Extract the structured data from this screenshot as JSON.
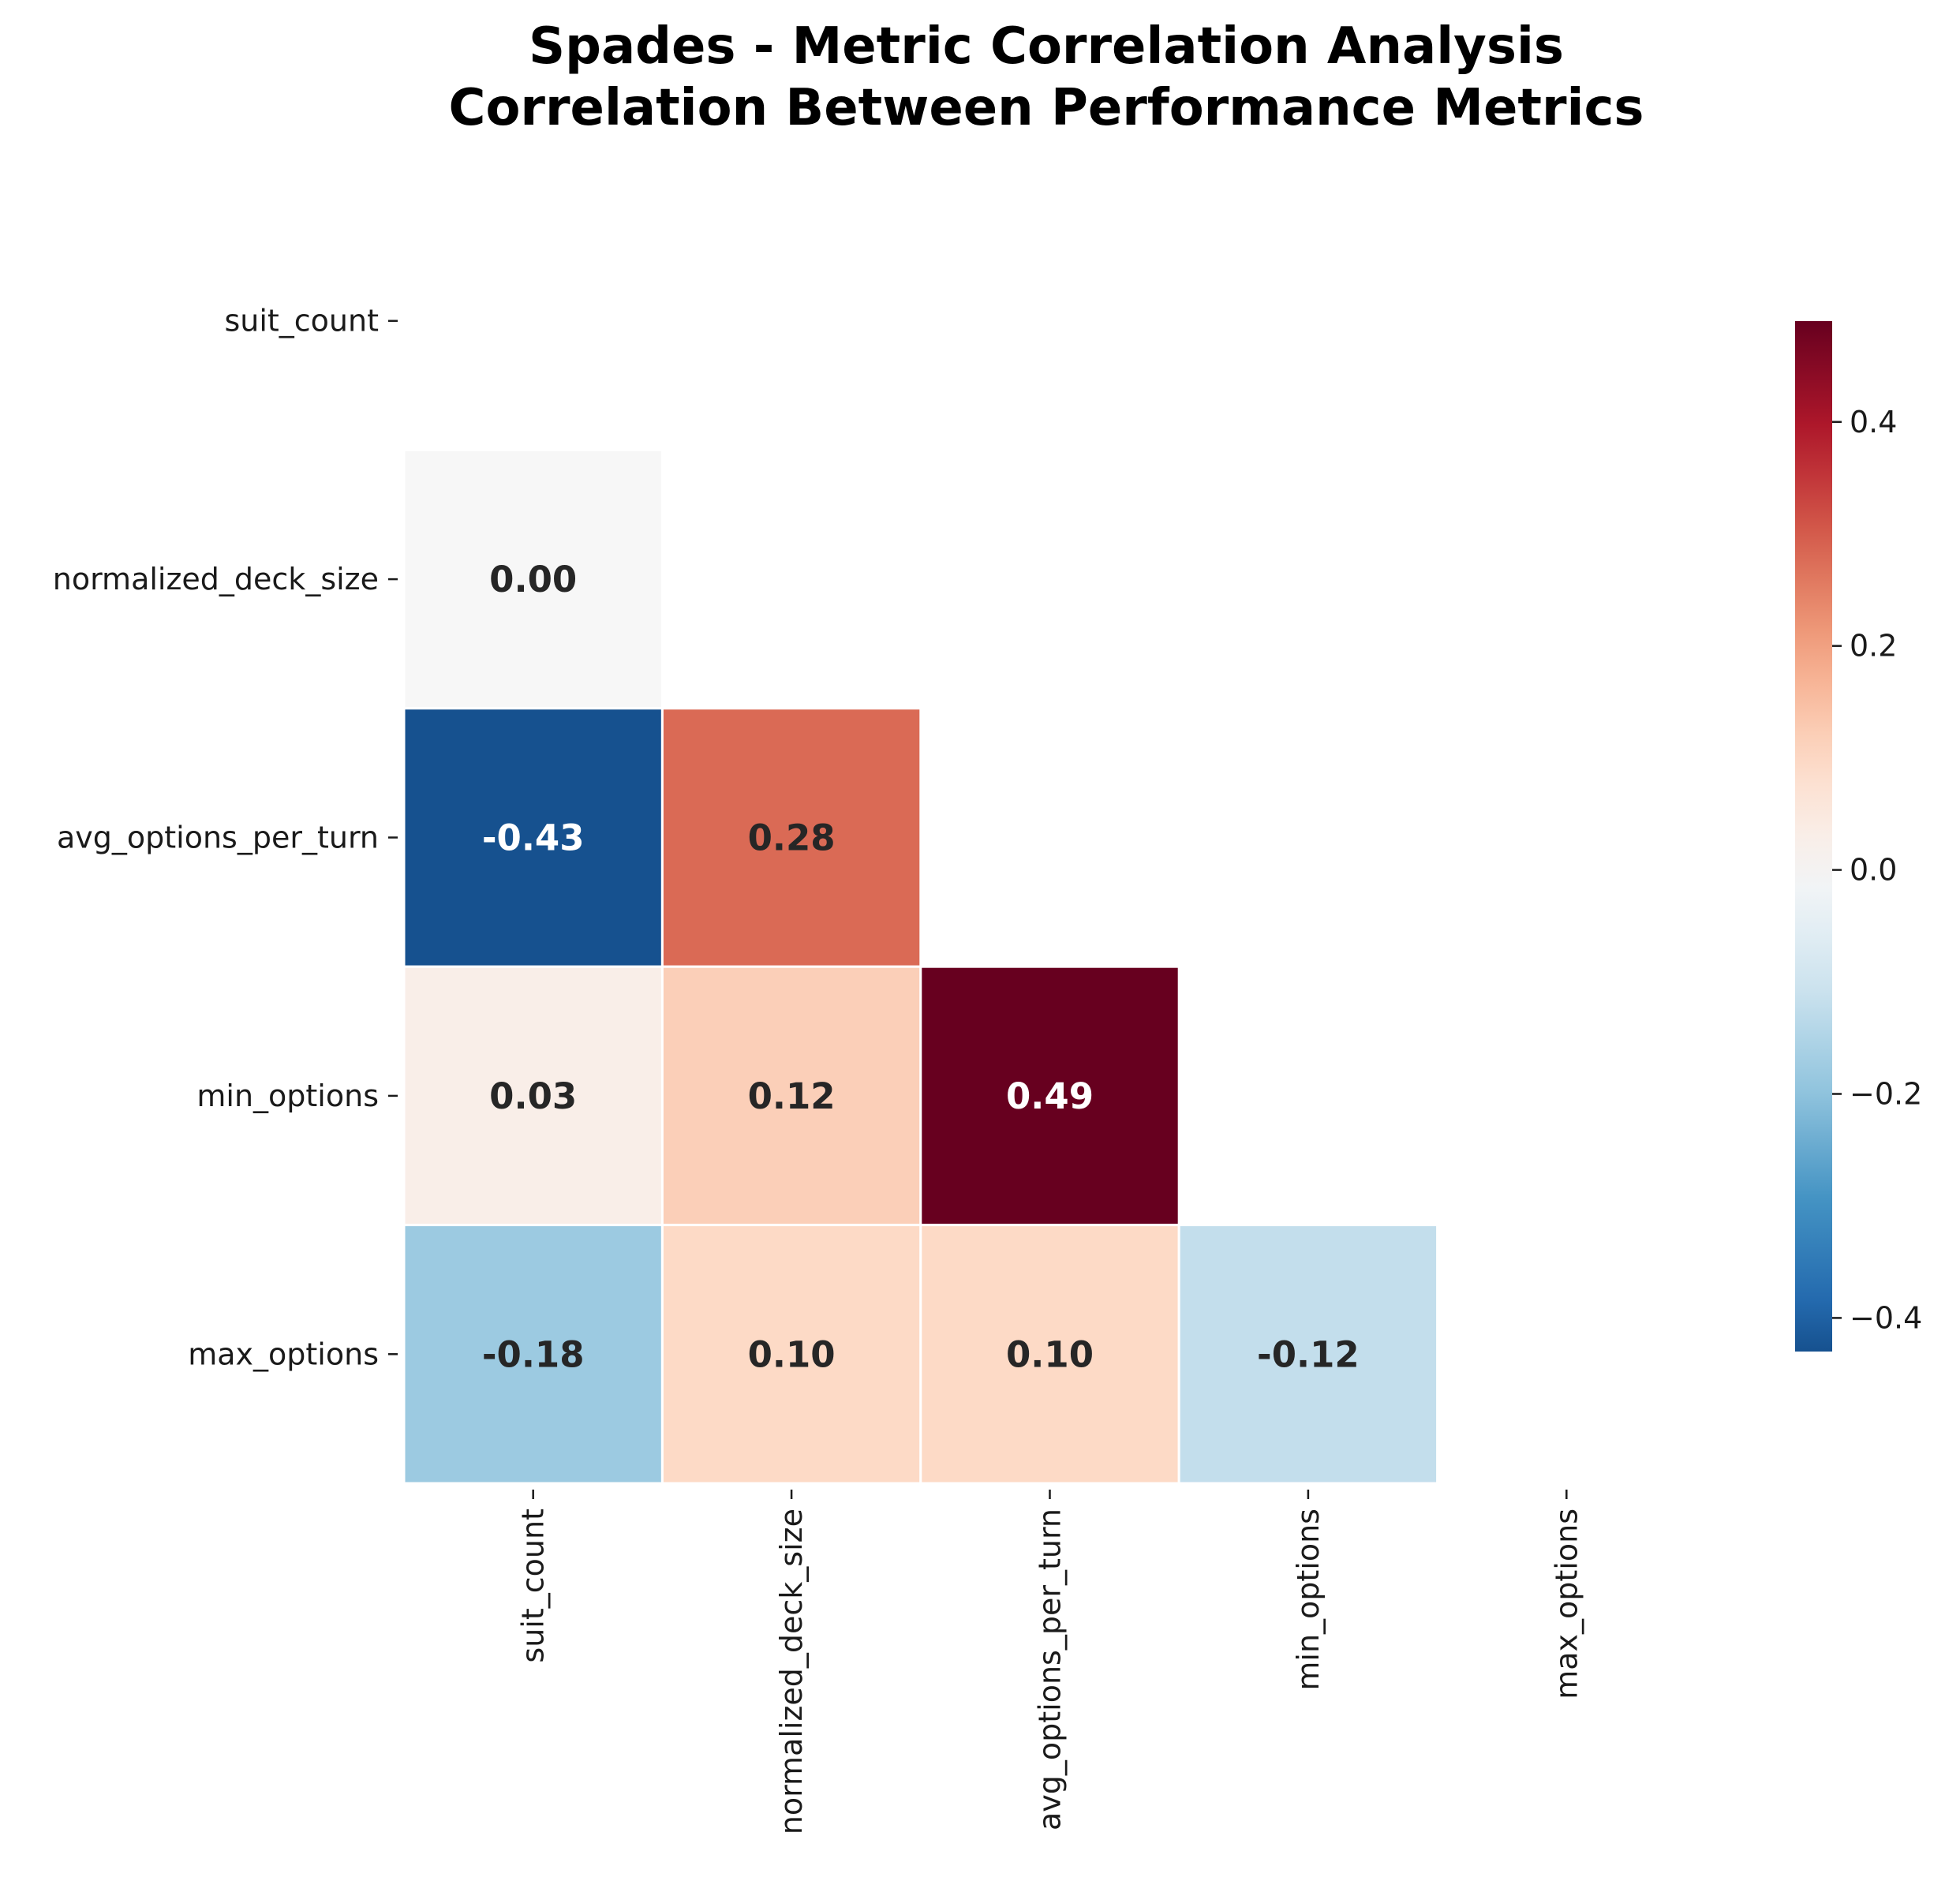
{
  "chart_data": {
    "type": "heatmap",
    "title": "Spades - Metric Correlation Analysis",
    "subtitle": "Correlation Between Performance Metrics",
    "xlabel": "",
    "ylabel": "",
    "variables": [
      "suit_count",
      "normalized_deck_size",
      "avg_options_per_turn",
      "min_options",
      "max_options"
    ],
    "mask": "upper triangle including diagonal",
    "cells": [
      {
        "row": "normalized_deck_size",
        "col": "suit_count",
        "value": 0.0,
        "label": "0.00"
      },
      {
        "row": "avg_options_per_turn",
        "col": "suit_count",
        "value": -0.43,
        "label": "-0.43"
      },
      {
        "row": "avg_options_per_turn",
        "col": "normalized_deck_size",
        "value": 0.28,
        "label": "0.28"
      },
      {
        "row": "min_options",
        "col": "suit_count",
        "value": 0.03,
        "label": "0.03"
      },
      {
        "row": "min_options",
        "col": "normalized_deck_size",
        "value": 0.12,
        "label": "0.12"
      },
      {
        "row": "min_options",
        "col": "avg_options_per_turn",
        "value": 0.49,
        "label": "0.49"
      },
      {
        "row": "max_options",
        "col": "suit_count",
        "value": -0.18,
        "label": "-0.18"
      },
      {
        "row": "max_options",
        "col": "normalized_deck_size",
        "value": 0.1,
        "label": "0.10"
      },
      {
        "row": "max_options",
        "col": "avg_options_per_turn",
        "value": 0.1,
        "label": "0.10"
      },
      {
        "row": "max_options",
        "col": "min_options",
        "value": -0.12,
        "label": "-0.12"
      }
    ],
    "colormap": "RdBu_r",
    "colorbar": {
      "vmin": -0.43,
      "vmax": 0.49,
      "ticks": [
        -0.4,
        -0.2,
        0.0,
        0.2,
        0.4
      ],
      "tick_labels": [
        "−0.4",
        "−0.2",
        "0.0",
        "0.2",
        "0.4"
      ]
    },
    "grid": false,
    "legend": "colorbar right"
  }
}
